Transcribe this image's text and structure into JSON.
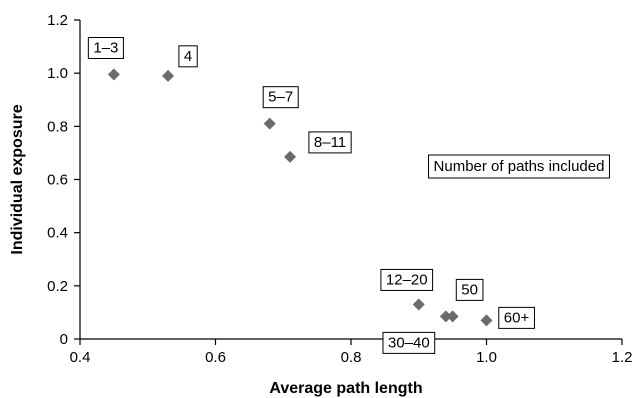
{
  "chart_data": {
    "type": "scatter",
    "title": "",
    "xlabel": "Average path length",
    "ylabel": "Individual exposure",
    "xlim": [
      0.4,
      1.2
    ],
    "ylim": [
      0,
      1.2
    ],
    "xticks": [
      "0.4",
      "0.6",
      "0.8",
      "1.0",
      "1.2"
    ],
    "yticks": [
      "0",
      "0.2",
      "0.4",
      "0.6",
      "0.8",
      "1.0",
      "1.2"
    ],
    "grid": false,
    "marker": "diamond",
    "marker_color": "#6b6b6b",
    "points": [
      {
        "x": 0.45,
        "y": 0.995,
        "label": "1–3"
      },
      {
        "x": 0.53,
        "y": 0.99,
        "label": "4"
      },
      {
        "x": 0.68,
        "y": 0.81,
        "label": "5–7"
      },
      {
        "x": 0.71,
        "y": 0.685,
        "label": "8–11"
      },
      {
        "x": 0.9,
        "y": 0.13,
        "label": "12–20"
      },
      {
        "x": 0.94,
        "y": 0.085,
        "label": "30–40"
      },
      {
        "x": 0.95,
        "y": 0.085,
        "label": "50"
      },
      {
        "x": 1.0,
        "y": 0.07,
        "label": "60+"
      }
    ],
    "legend_text": "Number of paths included"
  }
}
